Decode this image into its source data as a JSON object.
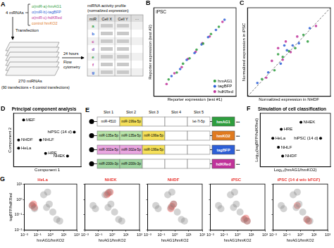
{
  "diagram_a": {
    "panel": "A",
    "mrna_count": "4 mRNAs",
    "constructs": [
      {
        "text": "α(miR-a)-hmAG1",
        "color": "#2e9e3e"
      },
      {
        "text": "α(miR-b)-tagBFP",
        "color": "#2d5fd6"
      },
      {
        "text": "α(miR-c)-hdKRed",
        "color": "#c0339a"
      },
      {
        "text": "control hmKO2",
        "color": "#e07a1f"
      }
    ],
    "step1": "Transfection",
    "plates": "270 miRNAs",
    "plates_note": "(90 transfections + 6 control transfections)",
    "step2": "24 hours",
    "step3": "Flow cytometry",
    "profile_title": "miRNA activity profile",
    "profile_subtitle": "(normalized expression)",
    "table_header": [
      "miR",
      "Cell X",
      "Cell Y",
      "···"
    ],
    "table_rows": [
      {
        "text": "a",
        "color": "#2e9e3e"
      },
      {
        "text": "b",
        "color": "#2d5fd6"
      },
      {
        "text": "c",
        "color": "#c0339a"
      },
      {
        "text": "d",
        "color": "#7a3fb0"
      },
      {
        "text": "e",
        "color": "#2e9e3e"
      },
      {
        "text": "f",
        "color": "#c0339a"
      },
      {
        "text": "g",
        "color": "#2d5fd6"
      }
    ]
  },
  "chart_data": [
    {
      "panel": "B",
      "type": "scatter",
      "xlabel": "Reporter expression (test #1)",
      "ylabel": "Reporter expression (test #2)",
      "annotation": "iPSC",
      "log": true,
      "xlim": [
        1,
        100000
      ],
      "ylim": [
        1,
        100000
      ],
      "tick_labels": false,
      "grid": false,
      "legend": "lower right",
      "series": [
        {
          "name": "hmAG1",
          "color": "#2e9e3e",
          "values": [
            [
              8,
              9
            ],
            [
              25,
              22
            ],
            [
              60,
              70
            ],
            [
              150,
              140
            ],
            [
              400,
              430
            ],
            [
              1000,
              950
            ],
            [
              3000,
              3300
            ],
            [
              9000,
              8500
            ]
          ]
        },
        {
          "name": "tagBFP",
          "color": "#2d5fd6",
          "values": [
            [
              12,
              14
            ],
            [
              40,
              35
            ],
            [
              100,
              115
            ],
            [
              300,
              280
            ],
            [
              800,
              850
            ],
            [
              2000,
              2200
            ],
            [
              6000,
              5600
            ],
            [
              20000,
              21000
            ]
          ]
        },
        {
          "name": "hdKRed",
          "color": "#c0339a",
          "values": [
            [
              6,
              5
            ],
            [
              18,
              20
            ],
            [
              50,
              45
            ],
            [
              120,
              130
            ],
            [
              350,
              330
            ],
            [
              900,
              1000
            ],
            [
              2500,
              2400
            ],
            [
              15000,
              16000
            ]
          ]
        }
      ]
    },
    {
      "panel": "C",
      "type": "scatter",
      "xlabel": "Normalized expression in NHDF",
      "ylabel": "Normalized expression in iPSC",
      "log": true,
      "xlim": [
        0.01,
        100
      ],
      "ylim": [
        0.01,
        100
      ],
      "tick_labels": false,
      "grid": false,
      "series": [
        {
          "color": "#2e9e3e",
          "values": [
            [
              0.05,
              0.06
            ],
            [
              0.2,
              0.15
            ],
            [
              0.5,
              0.6
            ],
            [
              1,
              1.1
            ],
            [
              2,
              1.5
            ],
            [
              5,
              6
            ],
            [
              0.3,
              0.8
            ],
            [
              8,
              3
            ]
          ]
        },
        {
          "color": "#2d5fd6",
          "values": [
            [
              0.03,
              0.04
            ],
            [
              0.1,
              0.12
            ],
            [
              0.4,
              0.3
            ],
            [
              0.8,
              1.2
            ],
            [
              1.5,
              2
            ],
            [
              3,
              2.5
            ],
            [
              10,
              12
            ],
            [
              0.6,
              2
            ]
          ]
        },
        {
          "color": "#c0339a",
          "values": [
            [
              0.08,
              0.07
            ],
            [
              0.15,
              0.4
            ],
            [
              0.3,
              1.5
            ],
            [
              0.7,
              3
            ],
            [
              1.2,
              1
            ],
            [
              2.5,
              5
            ],
            [
              0.5,
              0.45
            ],
            [
              20,
              15
            ]
          ]
        },
        {
          "type": "line",
          "line_style": "dashed",
          "color": "#555555",
          "values": [
            [
              0.01,
              0.01
            ],
            [
              100,
              100
            ]
          ]
        }
      ]
    },
    {
      "panel": "D",
      "type": "scatter",
      "title": "Principal component analysis",
      "xlabel": "Component 1",
      "ylabel": "Component 2",
      "xlim": [
        -1,
        1
      ],
      "ylim": [
        -1,
        1
      ],
      "tick_labels": false,
      "grid": false,
      "series": [
        {
          "color": "#000000",
          "values": [
            [
              -0.7,
              0.75
            ],
            [
              0.8,
              0.3
            ],
            [
              -0.85,
              0.0
            ],
            [
              -0.2,
              0.0
            ],
            [
              -0.85,
              -0.3
            ],
            [
              -0.05,
              -0.5
            ],
            [
              0.6,
              -0.6
            ]
          ],
          "point_labels": [
            "MEF",
            "hiPSC (14 d)",
            "NHDF",
            "NHLF",
            "HeLa",
            "HRE",
            "NHEK"
          ]
        }
      ]
    },
    {
      "panel": "F",
      "type": "scatter",
      "title": "Simulation of cell classification",
      "xlabel": "Log₁₀(hmAG1/hmKO2)",
      "ylabel": "Log₁₀(tagBFP/hdKRed)",
      "xlim": [
        -2.5,
        2.5
      ],
      "ylim": [
        -1.5,
        1.5
      ],
      "tick_labels": false,
      "grid": false,
      "series": [
        {
          "color": "#000000",
          "values": [
            [
              0.4,
              1.0
            ],
            [
              -1.0,
              0.6
            ],
            [
              -1.6,
              0.1
            ],
            [
              -1.2,
              -0.4
            ],
            [
              -0.9,
              -0.9
            ],
            [
              1.8,
              0.1
            ]
          ],
          "point_labels": [
            "NHEK",
            "HRE",
            "HeLa",
            "NHLF",
            "NHDF",
            "hiPSC (14 d)"
          ]
        }
      ]
    },
    {
      "panel": "G",
      "type": "scatter",
      "title": "HeLa",
      "xlabel": "hmAG1/hmKO2",
      "ylabel": "tagBFP/hdKRed",
      "log": true,
      "xlim": [
        0.01,
        100
      ],
      "ylim": [
        0.01,
        10
      ],
      "grid": false,
      "xticks": [
        {
          "value": 0.01,
          "label": "10⁻²"
        },
        {
          "value": 0.1,
          "label": "10⁻¹"
        },
        {
          "value": 1,
          "label": "10⁰"
        },
        {
          "value": 10,
          "label": "10¹"
        },
        {
          "value": 100,
          "label": "10²"
        }
      ],
      "yticks": [
        {
          "value": 0.01,
          "label": "10⁻²"
        },
        {
          "value": 0.1,
          "label": "10⁻¹"
        },
        {
          "value": 1,
          "label": "10⁰"
        },
        {
          "value": 10,
          "label": "10¹"
        }
      ],
      "series": [
        {
          "color": "#8c8c8c",
          "values": [
            [
              0.04,
              0.4
            ],
            [
              0.06,
              0.25
            ],
            [
              0.5,
              0.3
            ],
            [
              0.8,
              0.5
            ],
            [
              0.3,
              2
            ],
            [
              0.6,
              3
            ],
            [
              3,
              0.05
            ],
            [
              5,
              0.04
            ],
            [
              1.5,
              0.15
            ]
          ]
        },
        {
          "color": "#e8332e",
          "values": [
            [
              0.04,
              0.4
            ],
            [
              0.06,
              0.3
            ],
            [
              0.05,
              0.5
            ]
          ]
        }
      ]
    },
    {
      "type": "scatter",
      "title": "NHEK",
      "xlabel": "hmAG1/hmKO2",
      "log": true,
      "tick_labels": "x",
      "xlim": [
        0.01,
        100
      ],
      "ylim": [
        0.01,
        10
      ],
      "grid": false,
      "xticks": [
        {
          "value": 0.01,
          "label": "10⁻²"
        },
        {
          "value": 0.1,
          "label": "10⁻¹"
        },
        {
          "value": 1,
          "label": "10⁰"
        },
        {
          "value": 10,
          "label": "10¹"
        },
        {
          "value": 100,
          "label": "10²"
        }
      ],
      "yticks": [
        {
          "value": 0.01,
          "label": "10⁻²"
        },
        {
          "value": 0.1,
          "label": "10⁻¹"
        },
        {
          "value": 1,
          "label": "10⁰"
        },
        {
          "value": 10,
          "label": "10¹"
        }
      ],
      "series": [
        {
          "color": "#8c8c8c",
          "values": [
            [
              0.04,
              0.4
            ],
            [
              0.06,
              0.25
            ],
            [
              0.5,
              0.3
            ],
            [
              0.8,
              0.5
            ],
            [
              0.3,
              2
            ],
            [
              0.6,
              3
            ],
            [
              3,
              0.05
            ],
            [
              5,
              0.04
            ],
            [
              1.5,
              0.15
            ]
          ]
        },
        {
          "color": "#e8332e",
          "values": [
            [
              0.5,
              2.5
            ],
            [
              0.7,
              3
            ],
            [
              0.4,
              2
            ]
          ]
        }
      ]
    },
    {
      "type": "scatter",
      "title": "NHDF",
      "xlabel": "hmAG1/hmKO2",
      "log": true,
      "tick_labels": "x",
      "xlim": [
        0.01,
        100
      ],
      "ylim": [
        0.01,
        10
      ],
      "grid": false,
      "xticks": [
        {
          "value": 0.01,
          "label": "10⁻²"
        },
        {
          "value": 0.1,
          "label": "10⁻¹"
        },
        {
          "value": 1,
          "label": "10⁰"
        },
        {
          "value": 10,
          "label": "10¹"
        },
        {
          "value": 100,
          "label": "10²"
        }
      ],
      "yticks": [
        {
          "value": 0.01,
          "label": "10⁻²"
        },
        {
          "value": 0.1,
          "label": "10⁻¹"
        },
        {
          "value": 1,
          "label": "10⁰"
        },
        {
          "value": 10,
          "label": "10¹"
        }
      ],
      "series": [
        {
          "color": "#8c8c8c",
          "values": [
            [
              0.04,
              0.4
            ],
            [
              0.06,
              0.25
            ],
            [
              0.5,
              0.3
            ],
            [
              0.8,
              0.5
            ],
            [
              0.3,
              2
            ],
            [
              0.6,
              3
            ],
            [
              3,
              0.05
            ],
            [
              5,
              0.04
            ],
            [
              1.5,
              0.15
            ]
          ]
        },
        {
          "color": "#e8332e",
          "values": [
            [
              0.6,
              0.35
            ],
            [
              0.8,
              0.5
            ],
            [
              0.5,
              0.25
            ]
          ]
        }
      ]
    },
    {
      "type": "scatter",
      "title": "iPSC",
      "xlabel": "hmAG1/hmKO2",
      "log": true,
      "tick_labels": "x",
      "xlim": [
        0.01,
        100
      ],
      "ylim": [
        0.01,
        10
      ],
      "grid": false,
      "xticks": [
        {
          "value": 0.01,
          "label": "10⁻²"
        },
        {
          "value": 0.1,
          "label": "10⁻¹"
        },
        {
          "value": 1,
          "label": "10⁰"
        },
        {
          "value": 10,
          "label": "10¹"
        },
        {
          "value": 100,
          "label": "10²"
        }
      ],
      "yticks": [
        {
          "value": 0.01,
          "label": "10⁻²"
        },
        {
          "value": 0.1,
          "label": "10⁻¹"
        },
        {
          "value": 1,
          "label": "10⁰"
        },
        {
          "value": 10,
          "label": "10¹"
        }
      ],
      "series": [
        {
          "color": "#8c8c8c",
          "values": [
            [
              0.04,
              0.4
            ],
            [
              0.06,
              0.25
            ],
            [
              0.5,
              0.3
            ],
            [
              0.8,
              0.5
            ],
            [
              0.3,
              2
            ],
            [
              0.6,
              3
            ],
            [
              3,
              0.05
            ],
            [
              5,
              0.04
            ],
            [
              1.5,
              0.15
            ]
          ]
        },
        {
          "color": "#e8332e",
          "values": [
            [
              3,
              0.05
            ],
            [
              4,
              0.06
            ],
            [
              5,
              0.04
            ]
          ]
        }
      ]
    },
    {
      "type": "scatter",
      "title": "iPSC (14 d w/o bFGF)",
      "xlabel": "hmAG1/hmKO2",
      "log": true,
      "tick_labels": "x",
      "xlim": [
        0.01,
        100
      ],
      "ylim": [
        0.01,
        10
      ],
      "grid": false,
      "xticks": [
        {
          "value": 0.01,
          "label": "10⁻²"
        },
        {
          "value": 0.1,
          "label": "10⁻¹"
        },
        {
          "value": 1,
          "label": "10⁰"
        },
        {
          "value": 10,
          "label": "10¹"
        },
        {
          "value": 100,
          "label": "10²"
        }
      ],
      "yticks": [
        {
          "value": 0.01,
          "label": "10⁻²"
        },
        {
          "value": 0.1,
          "label": "10⁻¹"
        },
        {
          "value": 1,
          "label": "10⁰"
        },
        {
          "value": 10,
          "label": "10¹"
        }
      ],
      "series": [
        {
          "color": "#8c8c8c",
          "values": [
            [
              0.04,
              0.4
            ],
            [
              0.06,
              0.25
            ],
            [
              0.5,
              0.3
            ],
            [
              0.8,
              0.5
            ],
            [
              0.3,
              2
            ],
            [
              0.6,
              3
            ],
            [
              3,
              0.05
            ],
            [
              5,
              0.04
            ],
            [
              1.5,
              0.15
            ]
          ]
        },
        {
          "color": "#e8332e",
          "values": [
            [
              3,
              0.05
            ],
            [
              4,
              0.04
            ],
            [
              0.6,
              0.4
            ]
          ]
        }
      ]
    }
  ],
  "diagram_e": {
    "panel": "E",
    "slot_header": [
      "Slot 1",
      "Slot 2",
      "Slot 3",
      "Slot 4",
      "Slot 5"
    ],
    "continuation": "•••",
    "rows": [
      {
        "slots": [
          {
            "name": "miR-4510",
            "color": "#ffffff"
          },
          {
            "name": "miR-199a-5p",
            "color": "#f5e05a"
          },
          null,
          null,
          {
            "name": "let-7i-5p",
            "color": "#ffffff"
          }
        ],
        "reporter": {
          "name": "hmAG1",
          "color": "#2e9e3e"
        }
      },
      {
        "slots": [
          {
            "name": "miR-135a-5p",
            "color": "#b7e3a8"
          },
          {
            "name": "miR-135a-5p",
            "color": "#b7e3a8"
          },
          {
            "name": "miR-199a-5p",
            "color": "#f5e05a"
          },
          null,
          null
        ],
        "reporter": {
          "name": "hmKO2",
          "color": "#e07a1f"
        }
      },
      {
        "slots": [
          {
            "name": "miR-302a-5p",
            "color": "#e9a6e0"
          },
          {
            "name": "miR-302a-5p",
            "color": "#e9a6e0"
          },
          {
            "name": "miR-199a-5p",
            "color": "#f5e05a"
          },
          null,
          null
        ],
        "reporter": {
          "name": "tagBFP",
          "color": "#2d5fd6"
        }
      },
      {
        "slots": [
          {
            "name": "miR-200b-3p",
            "color": "#9fd4a0"
          },
          {
            "name": "miR-200b-3p",
            "color": "#9fd4a0"
          },
          null,
          null,
          null
        ],
        "reporter": {
          "name": "hdKRed",
          "color": "#c0339a"
        }
      }
    ]
  }
}
